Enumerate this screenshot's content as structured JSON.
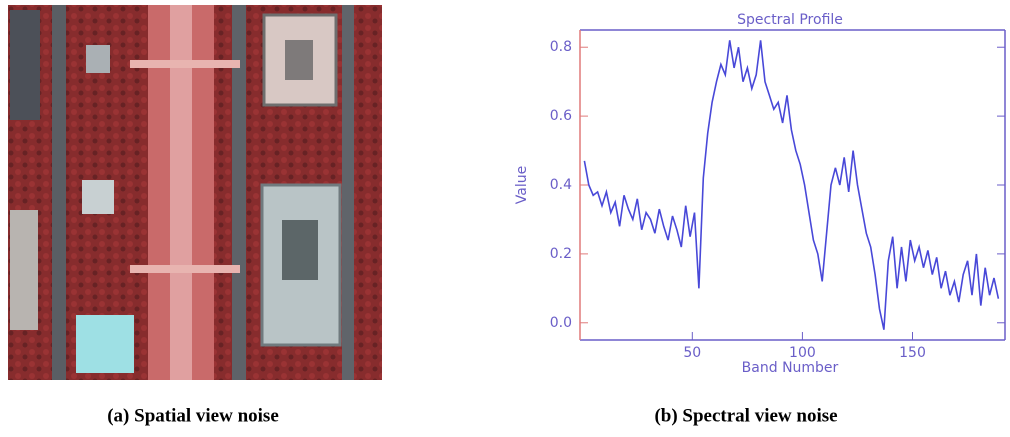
{
  "captions": [
    "(a) Spatial view noise",
    "(b) Spectral view noise"
  ],
  "chart_data": {
    "type": "line",
    "title": "Spectral Profile",
    "xlabel": "Band Number",
    "ylabel": "Value",
    "x": [
      1,
      3,
      5,
      7,
      9,
      11,
      13,
      15,
      17,
      19,
      21,
      23,
      25,
      27,
      29,
      31,
      33,
      35,
      37,
      39,
      41,
      43,
      45,
      47,
      49,
      51,
      53,
      55,
      57,
      59,
      61,
      63,
      65,
      67,
      69,
      71,
      73,
      75,
      77,
      79,
      81,
      83,
      85,
      87,
      89,
      91,
      93,
      95,
      97,
      99,
      101,
      103,
      105,
      107,
      109,
      111,
      113,
      115,
      117,
      119,
      121,
      123,
      125,
      127,
      129,
      131,
      133,
      135,
      137,
      139,
      141,
      143,
      145,
      147,
      149,
      151,
      153,
      155,
      157,
      159,
      161,
      163,
      165,
      167,
      169,
      171,
      173,
      175,
      177,
      179,
      181,
      183,
      185,
      187,
      189
    ],
    "series": [
      {
        "color": "#4848d8",
        "values": [
          0.47,
          0.4,
          0.37,
          0.38,
          0.34,
          0.38,
          0.32,
          0.35,
          0.28,
          0.37,
          0.33,
          0.3,
          0.36,
          0.27,
          0.32,
          0.3,
          0.26,
          0.33,
          0.28,
          0.24,
          0.31,
          0.27,
          0.22,
          0.34,
          0.25,
          0.32,
          0.1,
          0.42,
          0.55,
          0.64,
          0.7,
          0.75,
          0.72,
          0.82,
          0.74,
          0.8,
          0.7,
          0.74,
          0.68,
          0.72,
          0.82,
          0.7,
          0.66,
          0.62,
          0.64,
          0.58,
          0.66,
          0.56,
          0.5,
          0.46,
          0.4,
          0.32,
          0.24,
          0.2,
          0.12,
          0.26,
          0.4,
          0.45,
          0.4,
          0.48,
          0.38,
          0.5,
          0.4,
          0.33,
          0.26,
          0.22,
          0.14,
          0.04,
          -0.02,
          0.18,
          0.25,
          0.1,
          0.22,
          0.12,
          0.24,
          0.18,
          0.22,
          0.16,
          0.21,
          0.14,
          0.19,
          0.1,
          0.15,
          0.08,
          0.12,
          0.06,
          0.14,
          0.18,
          0.08,
          0.2,
          0.05,
          0.16,
          0.08,
          0.13,
          0.07
        ]
      }
    ],
    "xlim": [
      -1,
      192
    ],
    "ylim": [
      -0.05,
      0.85
    ],
    "xticks": [
      50,
      100,
      150
    ],
    "yticks": [
      {
        "value": 0,
        "label": "0.0"
      },
      0.2,
      0.4,
      0.6,
      0.8
    ]
  }
}
